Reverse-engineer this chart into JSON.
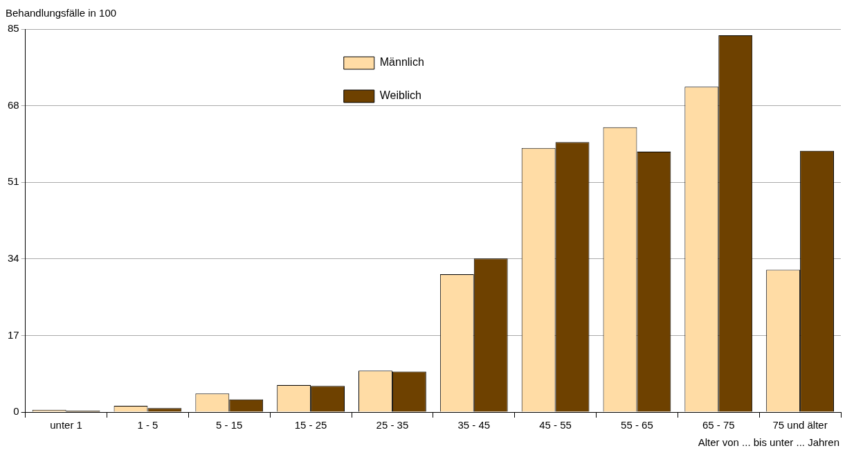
{
  "chart_data": {
    "type": "bar",
    "ylabel": "Behandlungsfälle in 100",
    "xlabel": "Alter von ... bis unter ... Jahren",
    "categories": [
      "unter 1",
      "1 - 5",
      "5 - 15",
      "15 - 25",
      "25 - 35",
      "35 - 45",
      "45 - 55",
      "55 - 65",
      "65 - 75",
      "75 und älter"
    ],
    "series": [
      {
        "name": "Männlich",
        "color": "#ffdca5",
        "values": [
          0.5,
          1.4,
          4.1,
          6.0,
          9.2,
          30.6,
          58.6,
          63.2,
          72.2,
          31.6
        ]
      },
      {
        "name": "Weiblich",
        "color": "#6e4100",
        "values": [
          0.3,
          0.9,
          2.8,
          5.8,
          9.0,
          34.1,
          59.9,
          57.8,
          83.6,
          58.0
        ]
      }
    ],
    "ylim": [
      0,
      85
    ],
    "yticks": [
      0,
      17,
      34,
      51,
      68,
      85
    ],
    "grid": "y",
    "legend": "top"
  }
}
